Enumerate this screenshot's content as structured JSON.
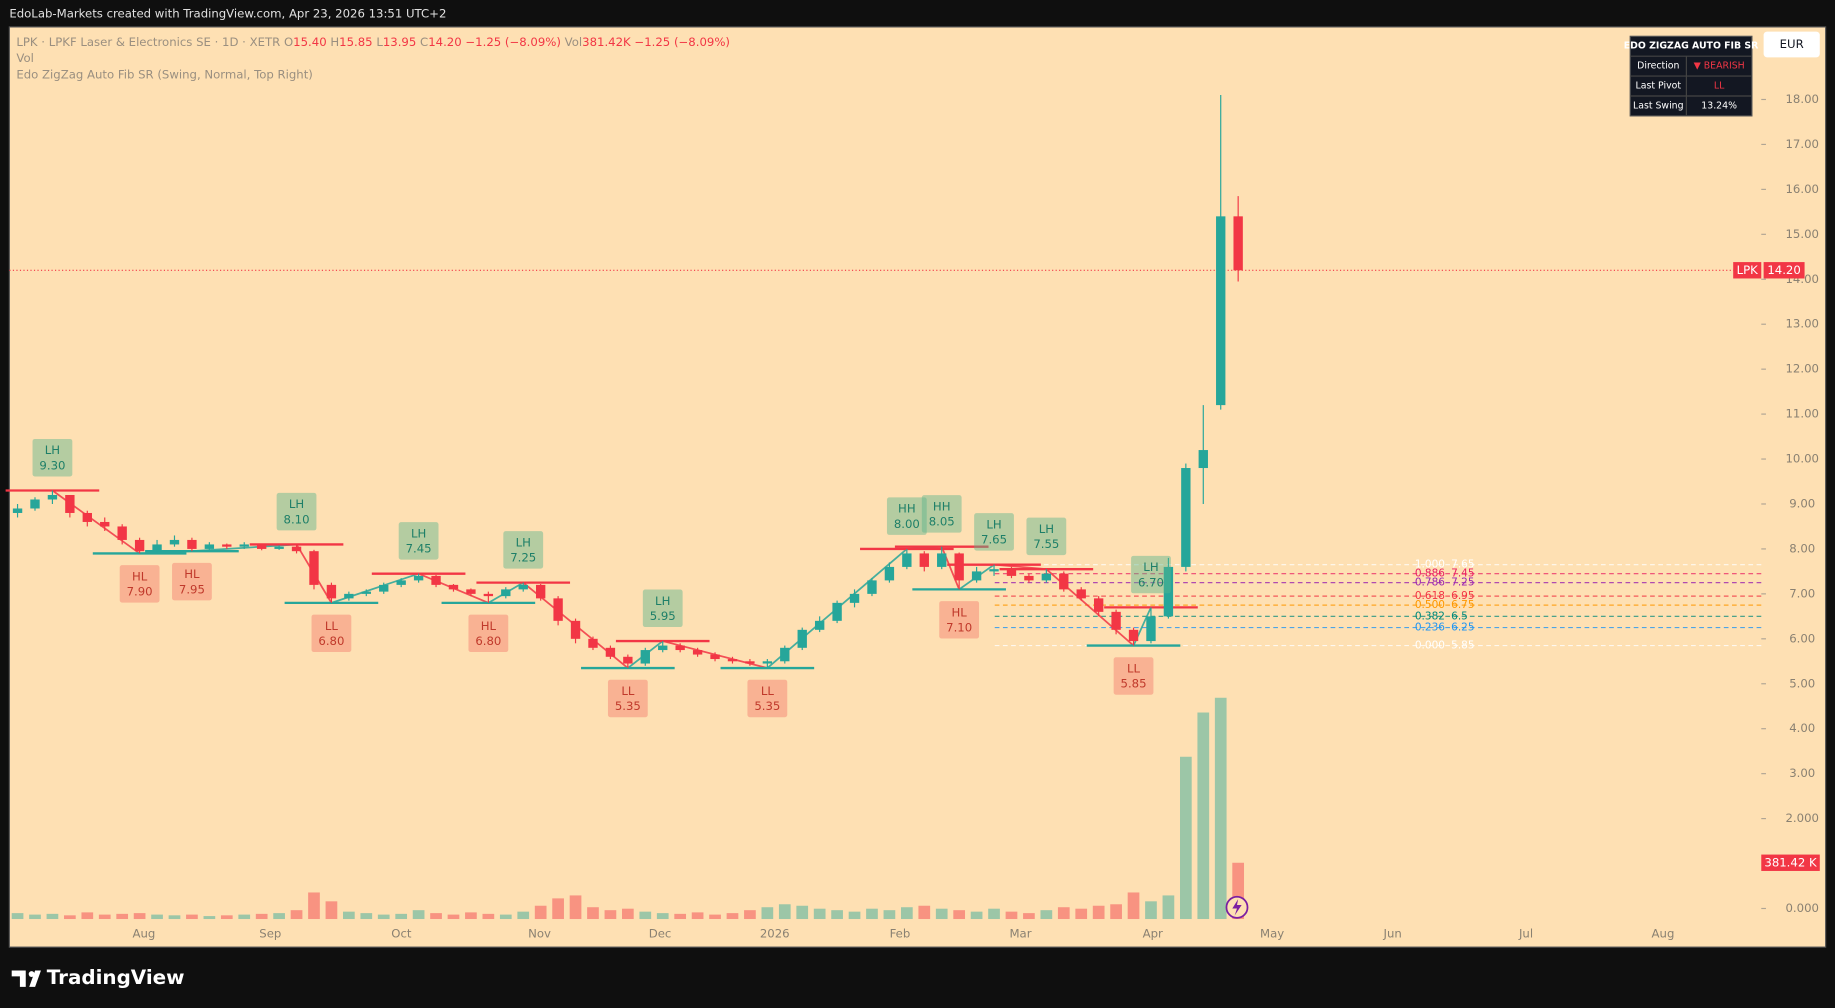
{
  "header": {
    "title": "EdoLab-Markets created with TradingView.com, Apr 23, 2026 13:51 UTC+2"
  },
  "legend": {
    "symbol": "LPK · LPKF Laser & Electronics SE · 1D · XETR",
    "o": "O",
    "o_value": "15.40",
    "h": "H",
    "h_value": "15.85",
    "l": "L",
    "l_value": "13.95",
    "c": "C",
    "c_value": "14.20",
    "change": "−1.25 (−8.09%)",
    "vol": "Vol",
    "vol_value": "381.42K",
    "vol_change": "−1.25 (−8.09%)",
    "vol_line": "Vol",
    "indicator": "Edo ZigZag Auto Fib SR (Swing, Normal, Top Right)"
  },
  "currency": "EUR",
  "table": {
    "title": "EDO ZIGZAG AUTO FIB SR",
    "rows": [
      [
        "Direction",
        "▼ BEARISH"
      ],
      [
        "Last Pivot",
        "LL"
      ],
      [
        "Last Swing",
        "13.24%"
      ]
    ]
  },
  "price_tag": {
    "symbol": "LPK",
    "value": 14.2,
    "label": "14.20"
  },
  "volume_tag": "381.42 K",
  "footer": {
    "brand": "TradingView"
  },
  "chart_data": {
    "type": "candlestick",
    "up_color": "#26a69a",
    "down_color": "#f23645",
    "candles": [
      [
        8.8,
        9.0,
        8.7,
        8.9
      ],
      [
        8.9,
        9.15,
        8.85,
        9.1
      ],
      [
        9.1,
        9.3,
        9.0,
        9.2
      ],
      [
        9.2,
        9.2,
        8.7,
        8.8
      ],
      [
        8.8,
        8.85,
        8.5,
        8.6
      ],
      [
        8.6,
        8.7,
        8.4,
        8.5
      ],
      [
        8.5,
        8.55,
        8.1,
        8.2
      ],
      [
        8.2,
        8.25,
        7.9,
        7.95
      ],
      [
        7.95,
        8.2,
        7.92,
        8.1
      ],
      [
        8.1,
        8.3,
        8.05,
        8.2
      ],
      [
        8.2,
        8.25,
        7.95,
        8.0
      ],
      [
        8.0,
        8.15,
        7.98,
        8.1
      ],
      [
        8.1,
        8.12,
        8.0,
        8.05
      ],
      [
        8.05,
        8.15,
        8.0,
        8.1
      ],
      [
        8.1,
        8.08,
        7.97,
        8.0
      ],
      [
        8.0,
        8.08,
        7.98,
        8.05
      ],
      [
        8.05,
        8.1,
        7.9,
        7.95
      ],
      [
        7.95,
        7.98,
        7.1,
        7.2
      ],
      [
        7.2,
        7.25,
        6.8,
        6.9
      ],
      [
        6.9,
        7.05,
        6.85,
        7.0
      ],
      [
        7.0,
        7.1,
        6.95,
        7.05
      ],
      [
        7.05,
        7.25,
        7.0,
        7.2
      ],
      [
        7.2,
        7.35,
        7.15,
        7.3
      ],
      [
        7.3,
        7.45,
        7.25,
        7.4
      ],
      [
        7.4,
        7.42,
        7.15,
        7.2
      ],
      [
        7.2,
        7.22,
        7.05,
        7.1
      ],
      [
        7.1,
        7.12,
        6.95,
        7.0
      ],
      [
        7.0,
        7.05,
        6.8,
        6.95
      ],
      [
        6.95,
        7.15,
        6.9,
        7.1
      ],
      [
        7.1,
        7.25,
        7.05,
        7.2
      ],
      [
        7.2,
        7.22,
        6.85,
        6.9
      ],
      [
        6.9,
        6.95,
        6.3,
        6.4
      ],
      [
        6.4,
        6.45,
        5.9,
        6.0
      ],
      [
        6.0,
        6.05,
        5.75,
        5.8
      ],
      [
        5.8,
        5.85,
        5.55,
        5.6
      ],
      [
        5.6,
        5.65,
        5.35,
        5.45
      ],
      [
        5.45,
        5.8,
        5.4,
        5.75
      ],
      [
        5.75,
        5.95,
        5.7,
        5.85
      ],
      [
        5.85,
        5.9,
        5.7,
        5.75
      ],
      [
        5.75,
        5.8,
        5.6,
        5.65
      ],
      [
        5.65,
        5.7,
        5.5,
        5.55
      ],
      [
        5.55,
        5.6,
        5.45,
        5.5
      ],
      [
        5.5,
        5.55,
        5.4,
        5.45
      ],
      [
        5.45,
        5.55,
        5.35,
        5.5
      ],
      [
        5.5,
        5.85,
        5.45,
        5.8
      ],
      [
        5.8,
        6.25,
        5.75,
        6.2
      ],
      [
        6.2,
        6.5,
        6.15,
        6.4
      ],
      [
        6.4,
        6.85,
        6.35,
        6.8
      ],
      [
        6.8,
        7.1,
        6.7,
        7.0
      ],
      [
        7.0,
        7.35,
        6.95,
        7.3
      ],
      [
        7.3,
        7.7,
        7.25,
        7.6
      ],
      [
        7.6,
        8.0,
        7.55,
        7.9
      ],
      [
        7.9,
        7.95,
        7.5,
        7.6
      ],
      [
        7.6,
        8.05,
        7.55,
        7.9
      ],
      [
        7.9,
        7.92,
        7.1,
        7.3
      ],
      [
        7.3,
        7.6,
        7.25,
        7.5
      ],
      [
        7.5,
        7.65,
        7.4,
        7.55
      ],
      [
        7.55,
        7.6,
        7.35,
        7.4
      ],
      [
        7.4,
        7.45,
        7.25,
        7.3
      ],
      [
        7.3,
        7.55,
        7.25,
        7.45
      ],
      [
        7.45,
        7.5,
        7.05,
        7.1
      ],
      [
        7.1,
        7.15,
        6.85,
        6.9
      ],
      [
        6.9,
        6.95,
        6.5,
        6.6
      ],
      [
        6.6,
        6.65,
        6.1,
        6.2
      ],
      [
        6.2,
        6.25,
        5.85,
        5.95
      ],
      [
        5.95,
        6.7,
        5.9,
        6.5
      ],
      [
        6.5,
        7.8,
        6.45,
        7.6
      ],
      [
        7.6,
        9.9,
        7.5,
        9.8
      ],
      [
        9.8,
        11.2,
        9.0,
        10.2
      ],
      [
        11.2,
        18.1,
        11.1,
        15.4
      ],
      [
        15.4,
        15.85,
        13.95,
        14.2
      ]
    ],
    "volume": [
      40,
      30,
      35,
      25,
      45,
      30,
      35,
      40,
      30,
      25,
      30,
      20,
      25,
      30,
      35,
      40,
      60,
      180,
      120,
      50,
      40,
      30,
      35,
      60,
      40,
      30,
      45,
      35,
      30,
      50,
      90,
      140,
      160,
      80,
      60,
      70,
      50,
      40,
      35,
      45,
      30,
      40,
      60,
      80,
      100,
      90,
      70,
      60,
      50,
      70,
      60,
      80,
      90,
      70,
      60,
      50,
      70,
      50,
      40,
      60,
      80,
      70,
      90,
      100,
      180,
      120,
      160,
      1100,
      1400,
      1500,
      381.42
    ],
    "pivots": [
      {
        "kind": "LH",
        "value": 9.3,
        "label": "9.30"
      },
      {
        "kind": "HL",
        "value": 7.9,
        "label": "7.90"
      },
      {
        "kind": "HL",
        "value": 7.95,
        "label": "7.95"
      },
      {
        "kind": "LH",
        "value": 8.1,
        "label": "8.10"
      },
      {
        "kind": "LL",
        "value": 6.8,
        "label": "6.80"
      },
      {
        "kind": "LH",
        "value": 7.45,
        "label": "7.45"
      },
      {
        "kind": "HL",
        "value": 6.8,
        "label": "6.80"
      },
      {
        "kind": "LH",
        "value": 7.25,
        "label": "7.25"
      },
      {
        "kind": "LL",
        "value": 5.35,
        "label": "5.35"
      },
      {
        "kind": "LH",
        "value": 5.95,
        "label": "5.95"
      },
      {
        "kind": "LL",
        "value": 5.35,
        "label": "5.35"
      },
      {
        "kind": "HH",
        "value": 8.0,
        "label": "8.00"
      },
      {
        "kind": "HH",
        "value": 8.05,
        "label": "8.05"
      },
      {
        "kind": "HL",
        "value": 7.1,
        "label": "7.10"
      },
      {
        "kind": "LH",
        "value": 7.65,
        "label": "7.65"
      },
      {
        "kind": "LH",
        "value": 7.55,
        "label": "7.55"
      },
      {
        "kind": "LL",
        "value": 5.85,
        "label": "5.85"
      },
      {
        "kind": "LH",
        "value": 6.7,
        "label": "6.70"
      }
    ],
    "fib_levels": [
      {
        "ratio": {
          "value": 1,
          "label": "1.000"
        },
        "price": 7.65,
        "color": "#ffffff"
      },
      {
        "ratio": 0.886,
        "price": 7.45,
        "color": "#e91e63"
      },
      {
        "ratio": 0.786,
        "price": 7.25,
        "color": "#9c27b0"
      },
      {
        "ratio": 0.618,
        "price": 6.95,
        "color": "#f23645"
      },
      {
        "ratio": {
          "value": 0.5,
          "label": "0.500"
        },
        "price": 6.75,
        "color": "#ff9800"
      },
      {
        "ratio": 0.382,
        "price": 6.5,
        "color": "#00897b"
      },
      {
        "ratio": 0.236,
        "price": 6.25,
        "color": "#2196f3"
      },
      {
        "ratio": {
          "value": 0,
          "label": "0.000"
        },
        "price": 5.85,
        "color": "#ffffff"
      }
    ],
    "ylim": [
      0,
      20.2
    ],
    "yticks": [
      {
        "value": 18,
        "label": "18.00"
      },
      {
        "value": 17,
        "label": "17.00"
      },
      {
        "value": 16,
        "label": "16.00"
      },
      {
        "value": 15,
        "label": "15.00"
      },
      {
        "value": 14,
        "label": "14.00"
      },
      {
        "value": 13,
        "label": "13.00"
      },
      {
        "value": 12,
        "label": "12.00"
      },
      {
        "value": 11,
        "label": "11.00"
      },
      {
        "value": 10,
        "label": "10.00"
      },
      {
        "value": 9,
        "label": "9.00"
      },
      {
        "value": 8,
        "label": "8.00"
      },
      {
        "value": 7,
        "label": "7.00"
      },
      {
        "value": 6,
        "label": "6.00"
      },
      {
        "value": 5,
        "label": "5.00"
      },
      {
        "value": 4,
        "label": "4.00"
      },
      {
        "value": 3,
        "label": "3.00"
      },
      {
        "value": 2,
        "label": "2.000"
      },
      {
        "value": 0,
        "label": "0.000"
      }
    ],
    "x_axis_labels": [
      "Aug",
      "Sep",
      "Oct",
      "Nov",
      "Dec",
      "2026",
      "Feb",
      "Mar",
      "Apr",
      "May",
      "Jun",
      "Jul",
      "Aug"
    ]
  }
}
